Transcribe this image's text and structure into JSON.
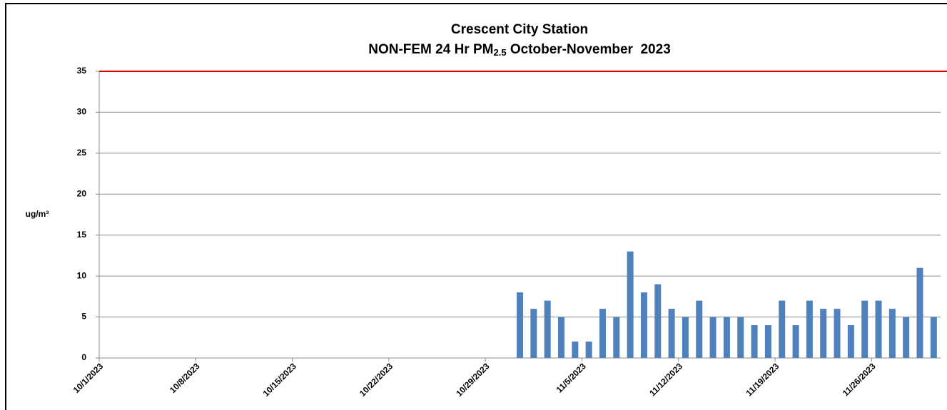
{
  "chart_data": {
    "type": "bar",
    "title": "Crescent City Station",
    "subtitle_parts": [
      "NON-FEM 24 Hr PM",
      "2.5",
      " October-November  2023"
    ],
    "y_label": "ug/m³",
    "x": [
      "10/31/2023",
      "11/1/2023",
      "11/2/2023",
      "11/3/2023",
      "11/4/2023",
      "11/5/2023",
      "11/6/2023",
      "11/7/2023",
      "11/8/2023",
      "11/9/2023",
      "11/10/2023",
      "11/11/2023",
      "11/12/2023",
      "11/13/2023",
      "11/14/2023",
      "11/15/2023",
      "11/16/2023",
      "11/17/2023",
      "11/18/2023",
      "11/19/2023",
      "11/20/2023",
      "11/21/2023",
      "11/22/2023",
      "11/23/2023",
      "11/24/2023",
      "11/25/2023",
      "11/26/2023",
      "11/27/2023",
      "11/28/2023",
      "11/29/2023",
      "11/30/2023"
    ],
    "values": [
      8,
      6,
      7,
      5,
      2,
      2,
      6,
      5,
      13,
      8,
      9,
      6,
      5,
      7,
      5,
      5,
      5,
      4,
      4,
      7,
      4,
      7,
      6,
      6,
      4,
      7,
      7,
      6,
      5,
      11,
      5
    ],
    "color": "#4f81bd",
    "xlim": [
      "10/1/2023",
      "12/1/2023"
    ],
    "xticks": [
      "10/1/2023",
      "10/8/2023",
      "10/15/2023",
      "10/22/2023",
      "10/29/2023",
      "11/5/2023",
      "11/12/2023",
      "11/19/2023",
      "11/26/2023"
    ],
    "ylim": [
      0,
      35
    ],
    "yticks": [
      0,
      5,
      10,
      15,
      20,
      25,
      30,
      35
    ],
    "grid": true,
    "threshold": 35,
    "threshold_color": "#e00000"
  }
}
